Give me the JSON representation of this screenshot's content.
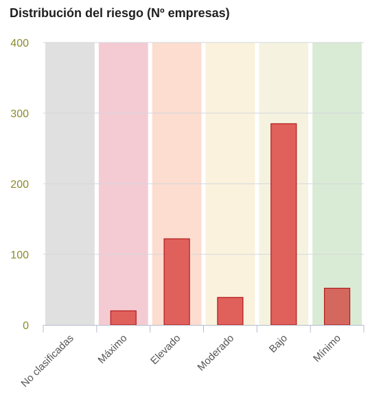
{
  "chart_data": {
    "type": "bar",
    "title": "Distribución del riesgo (Nº empresas)",
    "xlabel": "",
    "ylabel": "",
    "ylim": [
      0,
      400
    ],
    "yticks": [
      0,
      100,
      200,
      300,
      400
    ],
    "grid": true,
    "categories": [
      "No clasificadas",
      "Máximo",
      "Elevado",
      "Moderado",
      "Bajo",
      "Mínimo"
    ],
    "values": [
      0,
      20,
      122,
      39,
      285,
      52
    ],
    "category_band_colors": [
      "#e0e0e0",
      "#f5cbd3",
      "#fcddd0",
      "#faf2dc",
      "#f5f3e0",
      "#d9ebd5"
    ],
    "bar_colors": [
      "#e0605c",
      "#e0605c",
      "#e0605c",
      "#e0605c",
      "#e0605c",
      "#d4685f"
    ],
    "bar_border_color": "#b21a1a",
    "axis_color": "#8a8a2e"
  }
}
